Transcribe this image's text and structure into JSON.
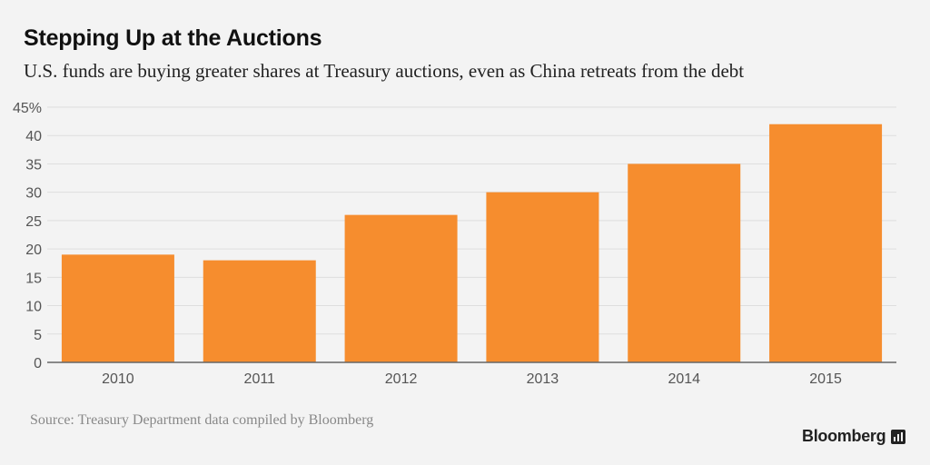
{
  "chart_data": {
    "type": "bar",
    "title": "Stepping Up at the Auctions",
    "subtitle": "U.S. funds are buying greater shares at Treasury auctions, even as China retreats from the debt",
    "categories": [
      "2010",
      "2011",
      "2012",
      "2013",
      "2014",
      "2015"
    ],
    "values": [
      19,
      18,
      26,
      30,
      35,
      42
    ],
    "ylim": [
      0,
      45
    ],
    "yticks": [
      0,
      5,
      10,
      15,
      20,
      25,
      30,
      35,
      40,
      45
    ],
    "ytick_labels": [
      "0",
      "5",
      "10",
      "15",
      "20",
      "25",
      "30",
      "35",
      "40",
      "45%"
    ],
    "xlabel": "",
    "ylabel": "",
    "grid": true,
    "legend": "none",
    "bar_color": "#f68d2e",
    "grid_color": "#dedede"
  },
  "source": "Source: Treasury Department data compiled by Bloomberg",
  "brand": {
    "name": "Bloomberg",
    "icon": "bar-chart-icon"
  }
}
